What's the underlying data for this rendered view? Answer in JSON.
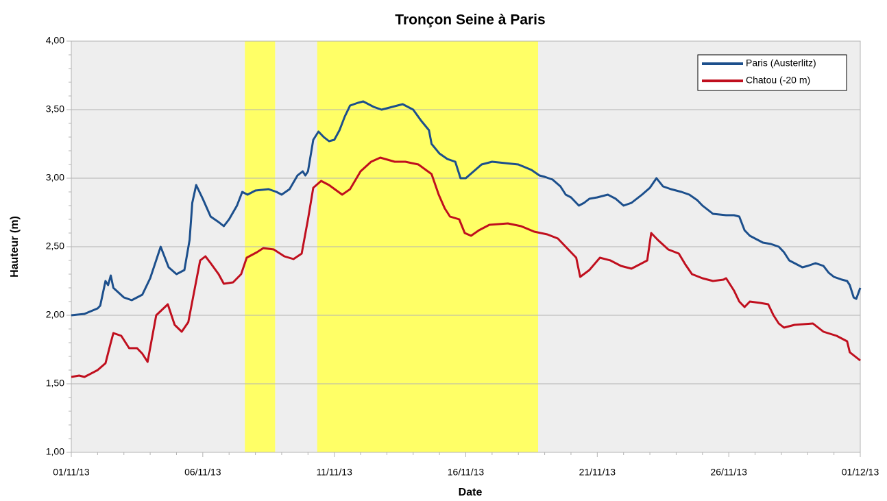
{
  "chart_data": {
    "type": "line",
    "title": "Tronçon Seine à Paris",
    "xlabel": "Date",
    "ylabel": "Hauteur (m)",
    "xlim": [
      0,
      30
    ],
    "xticks": [
      {
        "value": 0,
        "label": "01/11/13"
      },
      {
        "value": 5,
        "label": "06/11/13"
      },
      {
        "value": 10,
        "label": "11/11/13"
      },
      {
        "value": 15,
        "label": "16/11/13"
      },
      {
        "value": 20,
        "label": "21/11/13"
      },
      {
        "value": 25,
        "label": "26/11/13"
      },
      {
        "value": 30,
        "label": "01/12/13"
      }
    ],
    "xminorticks": [
      1,
      2,
      3,
      4,
      6,
      7,
      8,
      9,
      11,
      12,
      13,
      14,
      16,
      17,
      18,
      19,
      21,
      22,
      23,
      24,
      26,
      27,
      28,
      29
    ],
    "ylim": [
      1,
      4
    ],
    "yticks": [
      {
        "value": 1,
        "label": "1,00"
      },
      {
        "value": 1.5,
        "label": "1,50"
      },
      {
        "value": 2,
        "label": "2,00"
      },
      {
        "value": 2.5,
        "label": "2,50"
      },
      {
        "value": 3,
        "label": "3,00"
      },
      {
        "value": 3.5,
        "label": "3,50"
      },
      {
        "value": 4,
        "label": "4,00"
      }
    ],
    "yminorticks": [
      1.1,
      1.2,
      1.3,
      1.4,
      1.6,
      1.7,
      1.8,
      1.9,
      2.1,
      2.2,
      2.3,
      2.4,
      2.6,
      2.7,
      2.8,
      2.9,
      3.1,
      3.2,
      3.3,
      3.4,
      3.6,
      3.7,
      3.8,
      3.9
    ],
    "grid": true,
    "legend": "top-right",
    "highlights": [
      [
        6.6,
        7.75
      ],
      [
        9.35,
        17.75
      ]
    ],
    "highlight_color": "#ffff66",
    "series": [
      {
        "name": "Paris (Austerlitz)",
        "color": "#1c4f8c",
        "x": [
          0,
          0.5,
          1,
          1.1,
          1.3,
          1.4,
          1.5,
          1.6,
          2,
          2.3,
          2.7,
          3,
          3.4,
          3.7,
          4,
          4.3,
          4.5,
          4.6,
          4.75,
          5,
          5.3,
          5.6,
          5.8,
          6,
          6.3,
          6.5,
          6.7,
          7,
          7.5,
          7.8,
          8,
          8.3,
          8.6,
          8.8,
          8.9,
          9,
          9.2,
          9.4,
          9.6,
          9.8,
          10,
          10.2,
          10.4,
          10.6,
          10.9,
          11.1,
          11.5,
          11.8,
          12.2,
          12.6,
          13,
          13.3,
          13.6,
          13.7,
          14,
          14.3,
          14.6,
          14.8,
          15,
          15.3,
          15.6,
          16,
          16.5,
          17,
          17.5,
          17.8,
          18,
          18.3,
          18.6,
          18.8,
          19,
          19.3,
          19.5,
          19.7,
          20,
          20.4,
          20.7,
          21,
          21.3,
          21.7,
          22,
          22.25,
          22.5,
          22.8,
          23.2,
          23.5,
          23.8,
          24,
          24.2,
          24.4,
          24.9,
          25.2,
          25.4,
          25.6,
          25.8,
          26,
          26.3,
          26.6,
          26.9,
          27.1,
          27.3,
          27.5,
          27.8,
          28,
          28.3,
          28.6,
          28.8,
          29,
          29.3,
          29.5,
          29.6,
          29.75,
          29.85,
          30
        ],
        "values": [
          2.0,
          2.01,
          2.05,
          2.07,
          2.25,
          2.22,
          2.29,
          2.2,
          2.13,
          2.11,
          2.15,
          2.27,
          2.5,
          2.35,
          2.3,
          2.33,
          2.55,
          2.82,
          2.95,
          2.85,
          2.72,
          2.68,
          2.65,
          2.7,
          2.8,
          2.9,
          2.88,
          2.91,
          2.92,
          2.9,
          2.88,
          2.92,
          3.02,
          3.05,
          3.02,
          3.05,
          3.28,
          3.34,
          3.3,
          3.27,
          3.28,
          3.35,
          3.45,
          3.53,
          3.55,
          3.56,
          3.52,
          3.5,
          3.52,
          3.54,
          3.5,
          3.42,
          3.35,
          3.25,
          3.18,
          3.14,
          3.12,
          3.0,
          3.0,
          3.05,
          3.1,
          3.12,
          3.11,
          3.1,
          3.06,
          3.02,
          3.01,
          2.99,
          2.94,
          2.88,
          2.86,
          2.8,
          2.82,
          2.85,
          2.86,
          2.88,
          2.85,
          2.8,
          2.82,
          2.88,
          2.93,
          3.0,
          2.94,
          2.92,
          2.9,
          2.88,
          2.84,
          2.8,
          2.77,
          2.74,
          2.73,
          2.73,
          2.72,
          2.62,
          2.58,
          2.56,
          2.53,
          2.52,
          2.5,
          2.46,
          2.4,
          2.38,
          2.35,
          2.36,
          2.38,
          2.36,
          2.31,
          2.28,
          2.26,
          2.25,
          2.22,
          2.13,
          2.12,
          2.2
        ]
      },
      {
        "name": "Chatou (-20 m)",
        "color": "#c00f1e",
        "x": [
          0,
          0.3,
          0.5,
          1,
          1.3,
          1.5,
          1.6,
          1.9,
          2.2,
          2.5,
          2.7,
          2.9,
          3.23,
          3.67,
          3.93,
          4.2,
          4.45,
          4.7,
          4.9,
          5.1,
          5.3,
          5.6,
          5.8,
          6.15,
          6.46,
          6.67,
          7.06,
          7.3,
          7.7,
          8.1,
          8.45,
          8.76,
          9,
          9.2,
          9.5,
          9.8,
          10.3,
          10.6,
          11,
          11.4,
          11.75,
          12.3,
          12.7,
          13.2,
          13.7,
          13.97,
          14.2,
          14.4,
          14.75,
          14.96,
          15.2,
          15.5,
          15.9,
          16.6,
          17.1,
          17.6,
          18.1,
          18.5,
          18.9,
          19.2,
          19.35,
          19.7,
          20.1,
          20.5,
          20.9,
          21.3,
          21.7,
          21.9,
          22.05,
          22.3,
          22.7,
          23.1,
          23.35,
          23.6,
          24,
          24.4,
          24.8,
          24.9,
          25.2,
          25.4,
          25.6,
          25.8,
          26.2,
          26.5,
          26.7,
          26.9,
          27.1,
          27.5,
          28.2,
          28.6,
          29.1,
          29.5,
          29.6,
          30
        ],
        "values": [
          1.55,
          1.56,
          1.55,
          1.6,
          1.65,
          1.8,
          1.87,
          1.85,
          1.76,
          1.76,
          1.72,
          1.66,
          2.0,
          2.08,
          1.93,
          1.88,
          1.95,
          2.2,
          2.4,
          2.43,
          2.38,
          2.3,
          2.23,
          2.24,
          2.3,
          2.42,
          2.46,
          2.49,
          2.48,
          2.43,
          2.41,
          2.45,
          2.7,
          2.93,
          2.98,
          2.95,
          2.88,
          2.92,
          3.05,
          3.12,
          3.15,
          3.12,
          3.12,
          3.1,
          3.03,
          2.88,
          2.78,
          2.72,
          2.7,
          2.6,
          2.58,
          2.62,
          2.66,
          2.67,
          2.65,
          2.61,
          2.59,
          2.56,
          2.48,
          2.42,
          2.28,
          2.33,
          2.42,
          2.4,
          2.36,
          2.34,
          2.38,
          2.4,
          2.6,
          2.55,
          2.48,
          2.45,
          2.37,
          2.3,
          2.27,
          2.25,
          2.26,
          2.27,
          2.18,
          2.1,
          2.06,
          2.1,
          2.09,
          2.08,
          2.0,
          1.94,
          1.91,
          1.93,
          1.94,
          1.88,
          1.85,
          1.81,
          1.73,
          1.67
        ]
      }
    ]
  }
}
